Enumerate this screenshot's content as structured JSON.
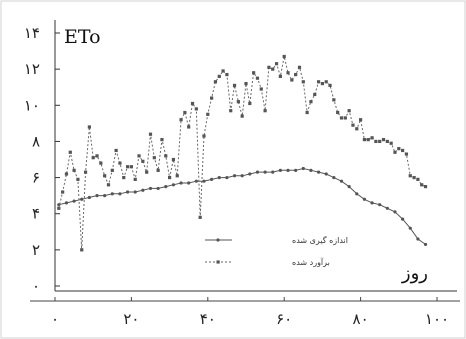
{
  "chart_data": {
    "type": "line",
    "ylabel": "ETo",
    "xlabel": "روز",
    "xlim": [
      0,
      100
    ],
    "ylim": [
      0,
      14
    ],
    "x_ticks": [
      0,
      20,
      40,
      60,
      80,
      100
    ],
    "x_tick_labels": [
      "۰",
      "۲۰",
      "۴۰",
      "۶۰",
      "۸۰",
      "۱۰۰"
    ],
    "y_ticks": [
      0,
      2,
      4,
      6,
      8,
      10,
      12,
      14
    ],
    "y_tick_labels": [
      "۰",
      "۲",
      "۴",
      "۶",
      "۸",
      "۱۰",
      "۱۲",
      "۱۴"
    ],
    "grid": false,
    "legend_position": "lower-center",
    "series": [
      {
        "name": "اندازه گیری شده",
        "color": "#555555",
        "line_style": "solid",
        "marker": "dot",
        "x": [
          1,
          3,
          5,
          7,
          9,
          11,
          13,
          15,
          17,
          19,
          21,
          23,
          25,
          27,
          29,
          31,
          33,
          35,
          37,
          39,
          41,
          43,
          45,
          47,
          49,
          51,
          53,
          55,
          57,
          59,
          61,
          63,
          65,
          67,
          69,
          71,
          73,
          75,
          77,
          79,
          81,
          83,
          85,
          87,
          89,
          91,
          93,
          95,
          97
        ],
        "y": [
          4.5,
          4.6,
          4.7,
          4.8,
          4.9,
          5.0,
          5.0,
          5.1,
          5.1,
          5.2,
          5.2,
          5.3,
          5.4,
          5.4,
          5.5,
          5.6,
          5.7,
          5.7,
          5.8,
          5.8,
          5.9,
          6.0,
          6.0,
          6.1,
          6.1,
          6.2,
          6.3,
          6.3,
          6.3,
          6.4,
          6.4,
          6.4,
          6.5,
          6.4,
          6.3,
          6.2,
          6.0,
          5.8,
          5.5,
          5.1,
          4.8,
          4.6,
          4.5,
          4.3,
          4.1,
          3.7,
          3.2,
          2.6,
          2.3
        ]
      },
      {
        "name": "برآورد شده",
        "color": "#666666",
        "line_style": "dashed",
        "marker": "square",
        "x": [
          1,
          2,
          3,
          4,
          5,
          6,
          7,
          8,
          9,
          10,
          11,
          12,
          13,
          14,
          15,
          16,
          17,
          18,
          19,
          20,
          21,
          22,
          23,
          24,
          25,
          26,
          27,
          28,
          29,
          30,
          31,
          32,
          33,
          34,
          35,
          36,
          37,
          38,
          39,
          40,
          41,
          42,
          43,
          44,
          45,
          46,
          47,
          48,
          49,
          50,
          51,
          52,
          53,
          54,
          55,
          56,
          57,
          58,
          59,
          60,
          61,
          62,
          63,
          64,
          65,
          66,
          67,
          68,
          69,
          70,
          71,
          72,
          73,
          74,
          75,
          76,
          77,
          78,
          79,
          80,
          81,
          82,
          83,
          84,
          85,
          86,
          87,
          88,
          89,
          90,
          91,
          92,
          93,
          94,
          95,
          96,
          97
        ],
        "y": [
          4.3,
          5.2,
          6.2,
          7.4,
          6.4,
          5.9,
          2.0,
          6.3,
          8.8,
          7.1,
          7.2,
          6.8,
          6.1,
          5.6,
          6.4,
          7.5,
          6.8,
          6.0,
          6.6,
          6.6,
          5.9,
          7.2,
          6.9,
          6.3,
          8.4,
          7.1,
          6.4,
          8.1,
          7.2,
          6.0,
          7.0,
          6.1,
          9.2,
          9.6,
          8.8,
          10.1,
          9.8,
          3.8,
          8.3,
          9.5,
          10.4,
          11.3,
          11.6,
          11.9,
          11.7,
          9.7,
          11.1,
          10.2,
          9.4,
          11.2,
          10.1,
          11.8,
          11.5,
          10.9,
          9.7,
          12.1,
          12.0,
          12.3,
          11.6,
          12.7,
          11.8,
          11.4,
          11.7,
          12.1,
          11.3,
          9.6,
          10.2,
          10.6,
          11.3,
          11.2,
          11.3,
          11.1,
          10.3,
          9.6,
          9.3,
          9.3,
          9.7,
          8.9,
          8.7,
          9.2,
          8.1,
          8.1,
          8.2,
          8.0,
          8.0,
          8.1,
          8.0,
          7.9,
          7.4,
          7.6,
          7.5,
          7.3,
          6.1,
          6.0,
          5.9,
          5.6,
          5.5
        ]
      }
    ]
  }
}
